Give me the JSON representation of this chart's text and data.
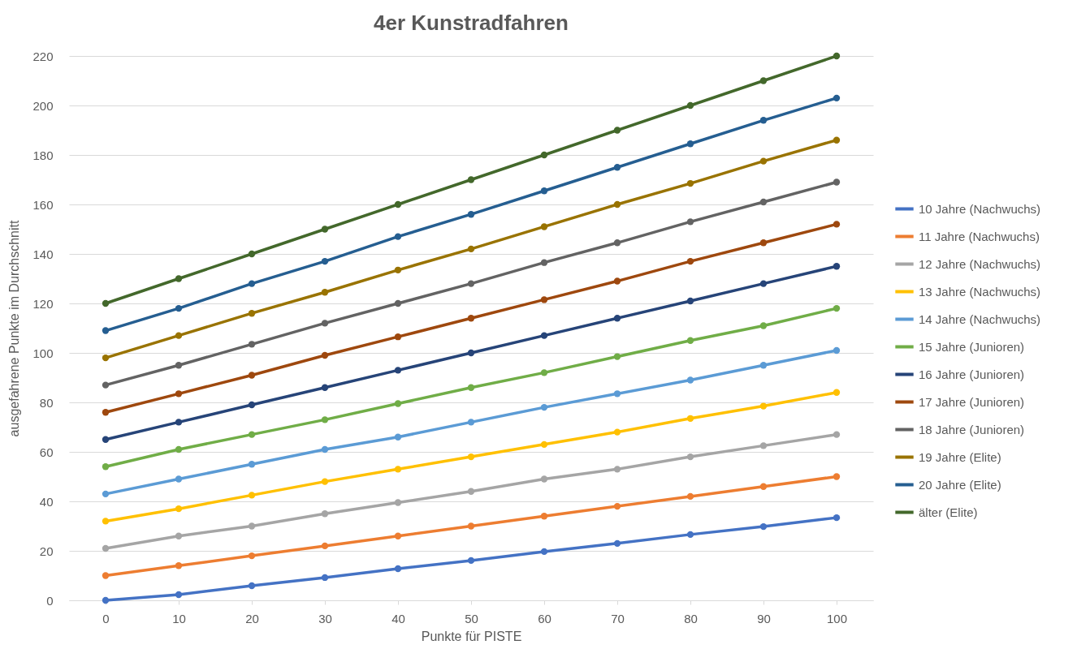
{
  "chart_data": {
    "type": "line",
    "title": "4er Kunstradfahren",
    "xlabel": "Punkte für PISTE",
    "ylabel": "ausgefahrene Punkte im Durchschnitt",
    "categories": [
      "0",
      "10",
      "20",
      "30",
      "40",
      "50",
      "60",
      "70",
      "80",
      "90",
      "100"
    ],
    "ylim": [
      0,
      220
    ],
    "yticks": [
      0,
      20,
      40,
      60,
      80,
      100,
      120,
      140,
      160,
      180,
      200,
      220
    ],
    "grid": "y",
    "legend": "right",
    "marker": "circle",
    "line_style": "solid",
    "series": [
      {
        "name": "10 Jahre (Nachwuchs)",
        "color": "#4472c4",
        "values": [
          0,
          2.3,
          5.9,
          9.2,
          12.8,
          16.1,
          19.7,
          23,
          26.6,
          29.8,
          33.4
        ]
      },
      {
        "name": "11 Jahre (Nachwuchs)",
        "color": "#ed7d31",
        "values": [
          10,
          14,
          18,
          22,
          26,
          30,
          34,
          38,
          42,
          46,
          50
        ]
      },
      {
        "name": "12 Jahre (Nachwuchs)",
        "color": "#a5a5a5",
        "values": [
          21,
          26,
          30,
          35,
          39.5,
          44,
          49,
          53,
          58,
          62.5,
          67
        ]
      },
      {
        "name": "13 Jahre (Nachwuchs)",
        "color": "#ffc000",
        "values": [
          32,
          37,
          42.5,
          48,
          53,
          58,
          63,
          68,
          73.5,
          78.5,
          84
        ]
      },
      {
        "name": "14 Jahre (Nachwuchs)",
        "color": "#5b9bd5",
        "values": [
          43,
          49,
          55,
          61,
          66,
          72,
          78,
          83.5,
          89,
          95,
          101
        ]
      },
      {
        "name": "15 Jahre (Junioren)",
        "color": "#70ad47",
        "values": [
          54,
          61,
          67,
          73,
          79.5,
          86,
          92,
          98.5,
          105,
          111,
          118
        ]
      },
      {
        "name": "16 Jahre (Junioren)",
        "color": "#264478",
        "values": [
          65,
          72,
          79,
          86,
          93,
          100,
          107,
          114,
          121,
          128,
          135
        ]
      },
      {
        "name": "17 Jahre (Junioren)",
        "color": "#9e480e",
        "values": [
          76,
          83.5,
          91,
          99,
          106.5,
          114,
          121.5,
          129,
          137,
          144.5,
          152
        ]
      },
      {
        "name": "18 Jahre (Junioren)",
        "color": "#636363",
        "values": [
          87,
          95,
          103.5,
          112,
          120,
          128,
          136.5,
          144.5,
          153,
          161,
          169
        ]
      },
      {
        "name": "19 Jahre (Elite)",
        "color": "#997300",
        "values": [
          98,
          107,
          116,
          124.5,
          133.5,
          142,
          151,
          160,
          168.5,
          177.5,
          186
        ]
      },
      {
        "name": "20 Jahre (Elite)",
        "color": "#255e91",
        "values": [
          109,
          118,
          128,
          137,
          147,
          156,
          165.5,
          175,
          184.5,
          194,
          203
        ]
      },
      {
        "name": "älter (Elite)",
        "color": "#43682b",
        "values": [
          120,
          130,
          140,
          150,
          160,
          170,
          180,
          190,
          200,
          210,
          220
        ]
      }
    ]
  }
}
